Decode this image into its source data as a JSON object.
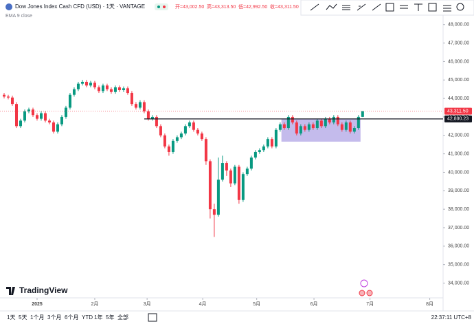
{
  "header": {
    "symbol": "Dow Jones Index Cash CFD (USD) · 1天 · VANTAGE",
    "ohlc": [
      "开=43,002.50",
      "高=43,313.50",
      "低=42,992.50",
      "收=43,311.50"
    ],
    "indicator": "EMA 9 close"
  },
  "logo": "TradingView",
  "chart_data": {
    "type": "candlestick",
    "up_color": "#089981",
    "down_color": "#f23645",
    "xlim": [
      -1,
      105.7
    ],
    "xticks": [
      {
        "value": 8,
        "label": "2025"
      },
      {
        "value": 22,
        "label": "2月"
      },
      {
        "value": 34.7,
        "label": "3月"
      },
      {
        "value": 48.2,
        "label": "4月"
      },
      {
        "value": 61.3,
        "label": "5月"
      },
      {
        "value": 75.2,
        "label": "6月"
      },
      {
        "value": 88.8,
        "label": "7月"
      },
      {
        "value": 103.3,
        "label": "8月"
      }
    ],
    "ylim": [
      33200,
      48400
    ],
    "yticks": [
      {
        "value": 34000,
        "label": "34,000.00"
      },
      {
        "value": 35000,
        "label": "35,000.00"
      },
      {
        "value": 36000,
        "label": "36,000.00"
      },
      {
        "value": 37000,
        "label": "37,000.00"
      },
      {
        "value": 38000,
        "label": "38,000.00"
      },
      {
        "value": 39000,
        "label": "39,000.00"
      },
      {
        "value": 40000,
        "label": "40,000.00"
      },
      {
        "value": 41000,
        "label": "41,000.00"
      },
      {
        "value": 42000,
        "label": "42,000.00"
      },
      {
        "value": 43000,
        "label": "43,000.00"
      },
      {
        "value": 44000,
        "label": "44,000.00"
      },
      {
        "value": 45000,
        "label": "45,000.00"
      },
      {
        "value": 46000,
        "label": "46,000.00"
      },
      {
        "value": 47000,
        "label": "47,000.00"
      },
      {
        "value": 48000,
        "label": "48,000.00"
      }
    ],
    "open": [
      44200,
      44100,
      44050,
      43700,
      42500,
      42800,
      43300,
      43400,
      43100,
      42900,
      43200,
      42800,
      42700,
      42200,
      42600,
      43000,
      43500,
      44200,
      44500,
      44800,
      44900,
      44700,
      44850,
      44600,
      44400,
      44700,
      44500,
      44350,
      44600,
      44450,
      44550,
      44300,
      43700,
      43500,
      43800,
      43300,
      42900,
      43000,
      42500,
      42000,
      41400,
      41100,
      41700,
      41900,
      42100,
      42500,
      42700,
      42300,
      42100,
      41800,
      40600,
      38000,
      37700,
      39600,
      40500,
      40100,
      39400,
      40300,
      38500,
      39900,
      40200,
      40800,
      41100,
      41200,
      41400,
      41800,
      41400,
      42300,
      42600,
      42400,
      43000,
      42700,
      42100,
      42500,
      42300,
      42600,
      42400,
      42800,
      42500,
      42900,
      42700,
      43000,
      42600,
      42300,
      42700,
      42200,
      42400,
      43002.5
    ],
    "high": [
      44300,
      44200,
      44150,
      43800,
      42900,
      43400,
      43500,
      43500,
      43200,
      43300,
      43300,
      42900,
      42800,
      42700,
      43100,
      43600,
      44300,
      44600,
      44900,
      45000,
      45000,
      44950,
      44950,
      44700,
      44800,
      44800,
      44600,
      44700,
      44700,
      44650,
      44650,
      44400,
      43800,
      43900,
      43900,
      43400,
      43100,
      43100,
      42600,
      42100,
      41500,
      41800,
      42000,
      42200,
      42600,
      42800,
      42800,
      42400,
      42200,
      41900,
      40700,
      38300,
      40800,
      40900,
      40600,
      40200,
      40400,
      40400,
      40000,
      40300,
      40900,
      41200,
      41300,
      41500,
      41900,
      41900,
      42400,
      42700,
      42700,
      43100,
      43100,
      42800,
      42600,
      42600,
      42700,
      42700,
      42900,
      42900,
      43000,
      43000,
      43100,
      43100,
      42700,
      42800,
      42800,
      42500,
      43100,
      43313.5
    ],
    "low": [
      44000,
      43950,
      43600,
      42400,
      42400,
      42700,
      43200,
      43000,
      42800,
      42800,
      42700,
      42600,
      42100,
      42100,
      42500,
      42900,
      43400,
      44100,
      44400,
      44700,
      44600,
      44600,
      44500,
      44300,
      44300,
      44400,
      44250,
      44250,
      44350,
      44350,
      44200,
      43600,
      43400,
      43400,
      43200,
      42800,
      42800,
      42400,
      41900,
      41300,
      40900,
      41000,
      41600,
      41800,
      42000,
      42400,
      42200,
      42000,
      41700,
      40400,
      37500,
      36500,
      37600,
      39500,
      39800,
      39200,
      39300,
      38300,
      38400,
      39800,
      40100,
      40700,
      41000,
      41100,
      41300,
      41300,
      41300,
      42200,
      42300,
      42300,
      42600,
      42000,
      42000,
      42200,
      42200,
      42300,
      42300,
      42400,
      42400,
      42600,
      42600,
      42500,
      42200,
      42200,
      42100,
      42100,
      42300,
      42992.5
    ],
    "close": [
      44100,
      44050,
      43700,
      42500,
      42800,
      43300,
      43400,
      43100,
      42900,
      43200,
      42800,
      42700,
      42200,
      42600,
      43000,
      43500,
      44200,
      44500,
      44800,
      44900,
      44700,
      44850,
      44600,
      44400,
      44700,
      44500,
      44350,
      44600,
      44450,
      44550,
      44300,
      43700,
      43500,
      43800,
      43300,
      42900,
      43000,
      42500,
      42000,
      41400,
      41100,
      41700,
      41900,
      42100,
      42500,
      42700,
      42300,
      42100,
      41800,
      40600,
      38000,
      37700,
      39600,
      40500,
      40100,
      39400,
      40300,
      38500,
      39900,
      40200,
      40800,
      41100,
      41200,
      41400,
      41800,
      41400,
      42300,
      42600,
      42400,
      43000,
      42700,
      42100,
      42500,
      42300,
      42600,
      42400,
      42800,
      42500,
      42900,
      42700,
      43000,
      42600,
      42300,
      42700,
      42200,
      42400,
      43002.5,
      43311.5
    ],
    "price_tags": [
      {
        "value": 43311.5,
        "label": "43,311.50",
        "color": "#f23645"
      },
      {
        "value": 42890.23,
        "label": "42,890.23",
        "color": "#131722"
      }
    ],
    "box": {
      "x": [
        67.3,
        86.5
      ],
      "y": [
        41660,
        42890.23
      ],
      "color": "#9c8ee0"
    }
  },
  "bottom_bar": {
    "ranges": [
      "1天",
      "5天",
      "1个月",
      "3个月",
      "6个月",
      "YTD",
      "1年",
      "5年",
      "全部"
    ],
    "clock": "22:37:11 UTC+8"
  }
}
